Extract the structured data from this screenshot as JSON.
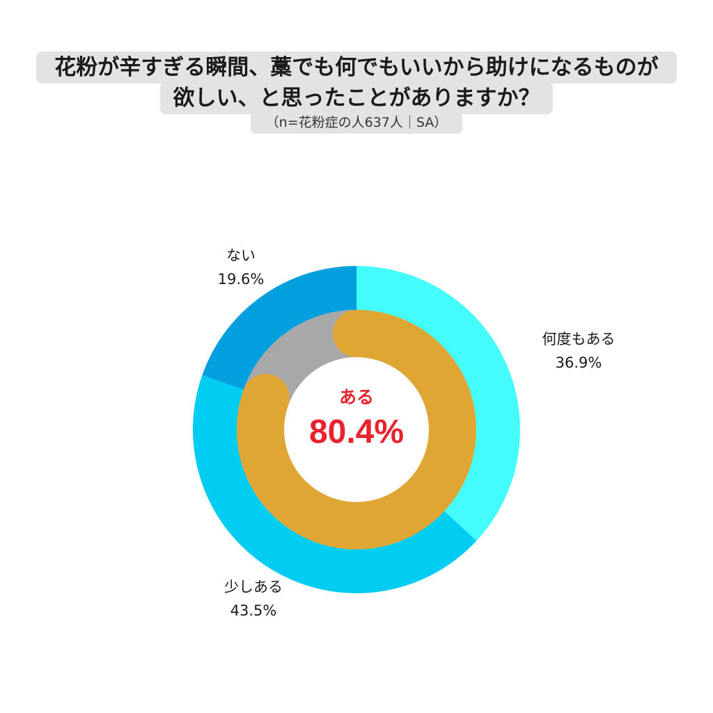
{
  "title": {
    "line1": "花粉が辛すぎる瞬間、藁でも何でもいいから助けになるものが",
    "line2": "欲しい、と思ったことがありますか？",
    "subtitle": "（n=花粉症の人637人｜SA）"
  },
  "center": {
    "label": "ある",
    "value": "80.4%"
  },
  "chart_data": {
    "type": "pie",
    "subtype": "nested-donut",
    "outer_ring": [
      {
        "name": "何度もある",
        "value": 36.9,
        "label": "36.9%",
        "color": "#45fcfd"
      },
      {
        "name": "少しある",
        "value": 43.5,
        "label": "43.5%",
        "color": "#01cdf2"
      },
      {
        "name": "ない",
        "value": 19.6,
        "label": "19.6%",
        "color": "#029fdf"
      }
    ],
    "inner_ring": [
      {
        "name": "ある",
        "value": 80.4,
        "color": "#e0a634"
      },
      {
        "name": "ない",
        "value": 19.6,
        "color": "#a8a8a8"
      }
    ],
    "center_color": "#e8232e"
  }
}
